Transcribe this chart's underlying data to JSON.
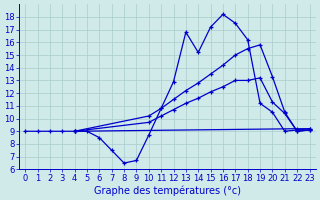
{
  "xlabel": "Graphe des températures (°c)",
  "background_color": "#d0eaea",
  "line_color": "#0000cc",
  "grid_color": "#aacccc",
  "xlim": [
    -0.5,
    23.5
  ],
  "ylim": [
    6,
    19
  ],
  "xticks": [
    0,
    1,
    2,
    3,
    4,
    5,
    6,
    7,
    8,
    9,
    10,
    11,
    12,
    13,
    14,
    15,
    16,
    17,
    18,
    19,
    20,
    21,
    22,
    23
  ],
  "yticks": [
    6,
    7,
    8,
    9,
    10,
    11,
    12,
    13,
    14,
    15,
    16,
    17,
    18
  ],
  "lines": [
    {
      "x": [
        0,
        1,
        2,
        3,
        4,
        5,
        6,
        7,
        8,
        9,
        10,
        11,
        12,
        13,
        14,
        15,
        16,
        17,
        18,
        19,
        20,
        21,
        22,
        23
      ],
      "y": [
        9,
        9,
        9,
        9,
        9,
        9,
        8.5,
        7.5,
        6.5,
        6.7,
        8.7,
        10.8,
        12.9,
        16.8,
        15.2,
        17.2,
        18.2,
        17.5,
        16.2,
        11.2,
        10.5,
        9,
        9.1,
        9.2
      ]
    },
    {
      "x": [
        4,
        22,
        23
      ],
      "y": [
        9,
        9.2,
        9.2
      ]
    },
    {
      "x": [
        4,
        10,
        11,
        12,
        13,
        14,
        15,
        16,
        17,
        18,
        19,
        20,
        21,
        22,
        23
      ],
      "y": [
        9,
        9.7,
        10.2,
        10.7,
        11.2,
        11.6,
        12.1,
        12.5,
        13.0,
        13.0,
        13.2,
        11.3,
        10.4,
        9.0,
        9.1
      ]
    },
    {
      "x": [
        4,
        10,
        11,
        12,
        13,
        14,
        15,
        16,
        17,
        18,
        19,
        20,
        21,
        22,
        23
      ],
      "y": [
        9,
        10.2,
        10.8,
        11.5,
        12.2,
        12.8,
        13.5,
        14.2,
        15.0,
        15.5,
        15.8,
        13.3,
        10.5,
        9.0,
        9.1
      ]
    }
  ],
  "tick_fontsize": 6,
  "xlabel_fontsize": 7
}
